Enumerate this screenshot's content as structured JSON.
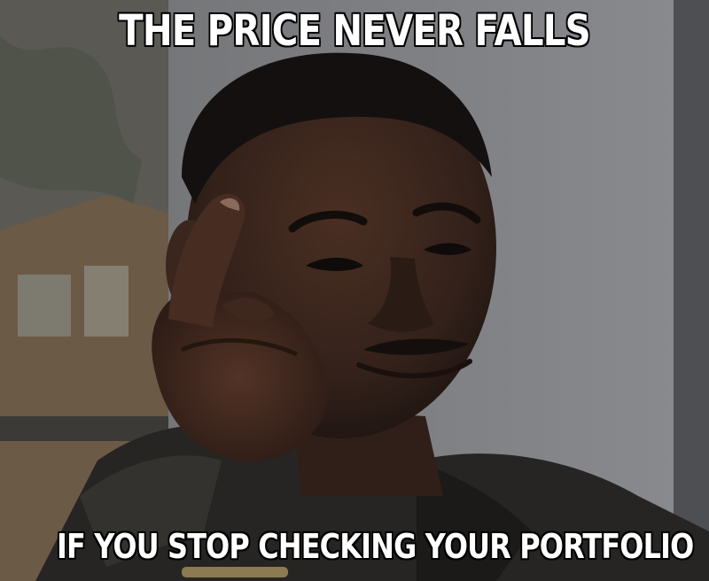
{
  "meme": {
    "top_text": "THE PRICE NEVER FALLS",
    "bottom_text": "IF YOU STOP CHECKING YOUR PORTFOLIO"
  }
}
